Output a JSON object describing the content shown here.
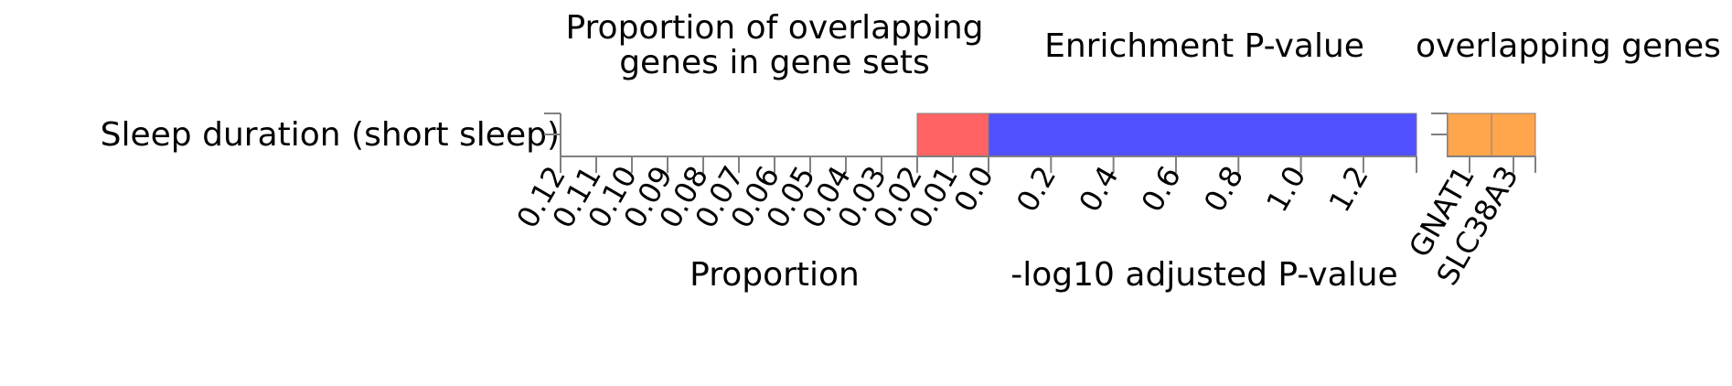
{
  "chart_data": [
    {
      "type": "bar",
      "orientation": "horizontal",
      "direction": "reversed",
      "title_lines": [
        "Proportion of overlapping",
        "genes in gene sets"
      ],
      "xlabel": "Proportion",
      "ylabel": "",
      "categories": [
        "Sleep duration (short sleep)"
      ],
      "values": [
        0.02
      ],
      "xlim": [
        0.12,
        0.0
      ],
      "xticks": [
        "0.12",
        "0.11",
        "0.10",
        "0.09",
        "0.08",
        "0.07",
        "0.06",
        "0.05",
        "0.04",
        "0.03",
        "0.02",
        "0.01",
        "0.0"
      ],
      "color": "#ff6363",
      "grid": false
    },
    {
      "type": "bar",
      "orientation": "horizontal",
      "title": "Enrichment P-value",
      "xlabel": "-log10 adjusted P-value",
      "ylabel": "",
      "categories": [
        "Sleep duration (short sleep)"
      ],
      "values": [
        1.37
      ],
      "xlim": [
        0,
        1.37
      ],
      "xticks": [
        "0.2",
        "0.4",
        "0.6",
        "0.8",
        "1.0",
        "1.2"
      ],
      "color": "#5050ff",
      "grid": false
    },
    {
      "type": "heatmap",
      "title": "overlapping genes",
      "ylabel": "",
      "categories": [
        "Sleep duration (short sleep)"
      ],
      "genes": [
        "GNAT1",
        "SLC38A3"
      ],
      "values": [
        [
          1,
          1
        ]
      ],
      "color": "#ffa54c",
      "grid": false
    }
  ]
}
